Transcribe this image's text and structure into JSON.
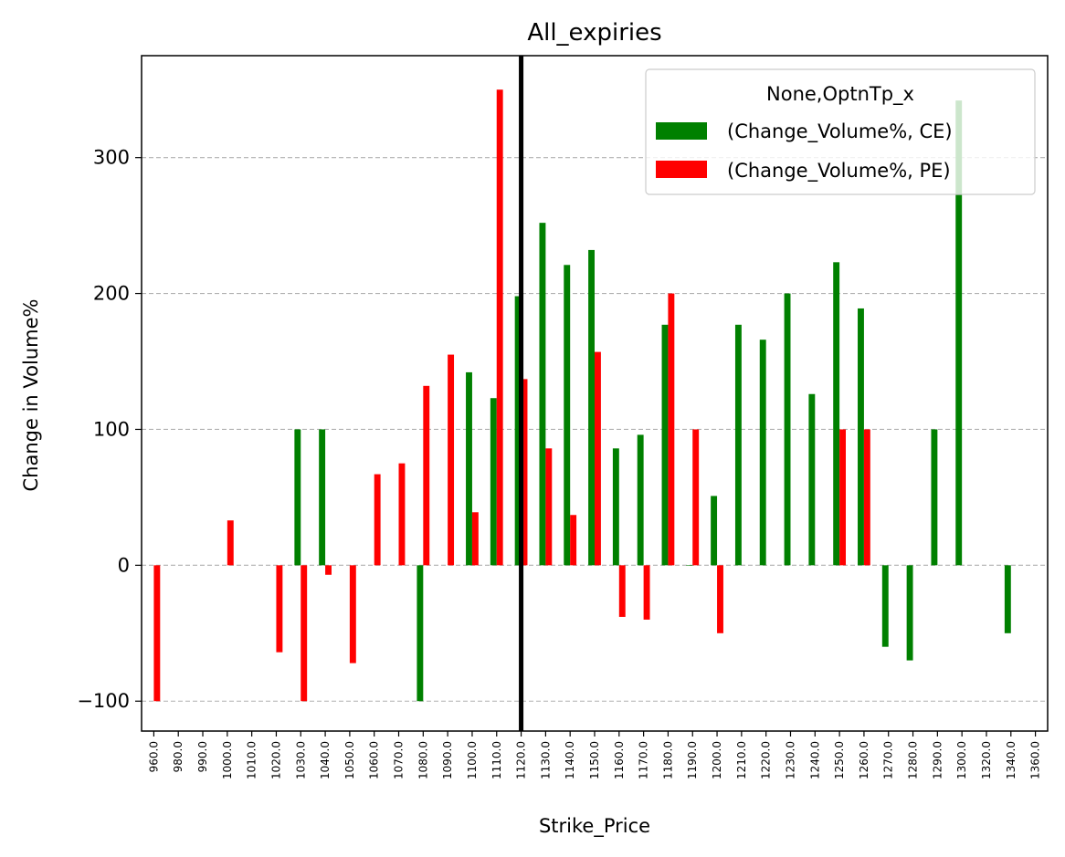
{
  "chart_data": {
    "type": "bar",
    "title": "All_expiries",
    "xlabel": "Strike_Price",
    "ylabel": "Change in Volume%",
    "ylim": [
      -122,
      375
    ],
    "yticks": [
      -100,
      0,
      100,
      200,
      300
    ],
    "ytick_labels": [
      "−100",
      "0",
      "100",
      "200",
      "300"
    ],
    "grid": "y-dashed",
    "vline_category": "1120.0",
    "legend": {
      "title": "None,OptnTp_x",
      "placement": "top-right",
      "entries": [
        "(Change_Volume%, CE)",
        "(Change_Volume%, PE)"
      ]
    },
    "colors": {
      "CE": "#008000",
      "PE": "#ff0000"
    },
    "categories": [
      "960.0",
      "980.0",
      "990.0",
      "1000.0",
      "1010.0",
      "1020.0",
      "1030.0",
      "1040.0",
      "1050.0",
      "1060.0",
      "1070.0",
      "1080.0",
      "1090.0",
      "1100.0",
      "1110.0",
      "1120.0",
      "1130.0",
      "1140.0",
      "1150.0",
      "1160.0",
      "1170.0",
      "1180.0",
      "1190.0",
      "1200.0",
      "1210.0",
      "1220.0",
      "1230.0",
      "1240.0",
      "1250.0",
      "1260.0",
      "1270.0",
      "1280.0",
      "1290.0",
      "1300.0",
      "1320.0",
      "1340.0",
      "1360.0"
    ],
    "series": [
      {
        "name": "(Change_Volume%, CE)",
        "values": [
          null,
          null,
          null,
          null,
          null,
          null,
          100,
          100,
          null,
          null,
          null,
          -100,
          null,
          142,
          123,
          198,
          252,
          221,
          232,
          86,
          96,
          177,
          0,
          51,
          177,
          166,
          200,
          126,
          223,
          189,
          -60,
          -70,
          100,
          342,
          null,
          -50,
          null
        ]
      },
      {
        "name": "(Change_Volume%, PE)",
        "values": [
          -100,
          null,
          null,
          33,
          null,
          -64,
          -100,
          -7,
          -72,
          67,
          75,
          132,
          155,
          39,
          350,
          137,
          86,
          37,
          157,
          -38,
          -40,
          200,
          100,
          -50,
          null,
          null,
          null,
          null,
          100,
          100,
          null,
          null,
          null,
          null,
          null,
          null,
          null
        ]
      }
    ]
  }
}
